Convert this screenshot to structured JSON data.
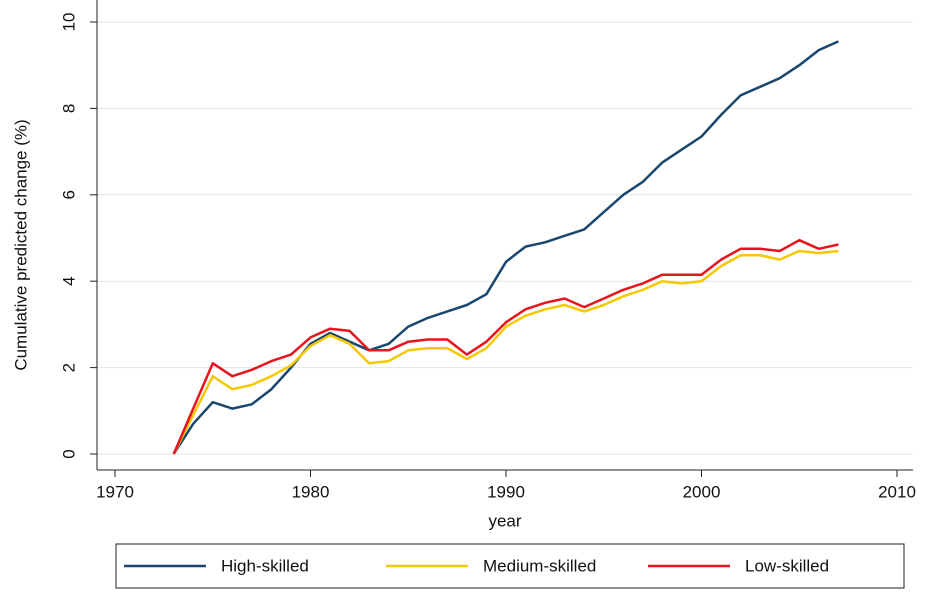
{
  "chart_data": {
    "type": "line",
    "y_label": "Cumulative predicted change (%)",
    "x_label": "year",
    "x": [
      1973,
      1974,
      1975,
      1976,
      1977,
      1978,
      1979,
      1980,
      1981,
      1982,
      1983,
      1984,
      1985,
      1986,
      1987,
      1988,
      1989,
      1990,
      1991,
      1992,
      1993,
      1994,
      1995,
      1996,
      1997,
      1998,
      1999,
      2000,
      2001,
      2002,
      2003,
      2004,
      2005,
      2006,
      2007
    ],
    "series": [
      {
        "name": "High-skilled",
        "color": "#1a476f",
        "values": [
          0,
          0.7,
          1.2,
          1.05,
          1.15,
          1.5,
          2.0,
          2.55,
          2.8,
          2.6,
          2.4,
          2.55,
          2.95,
          3.15,
          3.3,
          3.45,
          3.7,
          4.45,
          4.8,
          4.9,
          5.05,
          5.2,
          5.6,
          6.0,
          6.3,
          6.75,
          7.05,
          7.35,
          7.85,
          8.3,
          8.5,
          8.7,
          9.0,
          9.35,
          9.55
        ]
      },
      {
        "name": "Medium-skilled",
        "color": "#f5c800",
        "values": [
          0,
          0.9,
          1.8,
          1.5,
          1.6,
          1.8,
          2.05,
          2.5,
          2.75,
          2.55,
          2.1,
          2.15,
          2.4,
          2.45,
          2.45,
          2.2,
          2.45,
          2.95,
          3.2,
          3.35,
          3.45,
          3.3,
          3.45,
          3.65,
          3.8,
          4.0,
          3.95,
          4.0,
          4.35,
          4.6,
          4.6,
          4.5,
          4.7,
          4.65,
          4.7
        ]
      },
      {
        "name": "Low-skilled",
        "color": "#e8141c",
        "values": [
          0,
          1.05,
          2.1,
          1.8,
          1.95,
          2.15,
          2.3,
          2.7,
          2.9,
          2.85,
          2.4,
          2.4,
          2.6,
          2.65,
          2.65,
          2.3,
          2.6,
          3.05,
          3.35,
          3.5,
          3.6,
          3.4,
          3.6,
          3.8,
          3.95,
          4.15,
          4.15,
          4.15,
          4.5,
          4.75,
          4.75,
          4.7,
          4.95,
          4.75,
          4.85
        ]
      }
    ],
    "xlim": [
      1970,
      2010
    ],
    "xticks": [
      1970,
      1980,
      1990,
      2000,
      2010
    ],
    "ylim": [
      0,
      10
    ],
    "yticks": [
      0,
      2,
      4,
      6,
      8,
      10
    ],
    "grid": true,
    "legend": "bottom"
  }
}
